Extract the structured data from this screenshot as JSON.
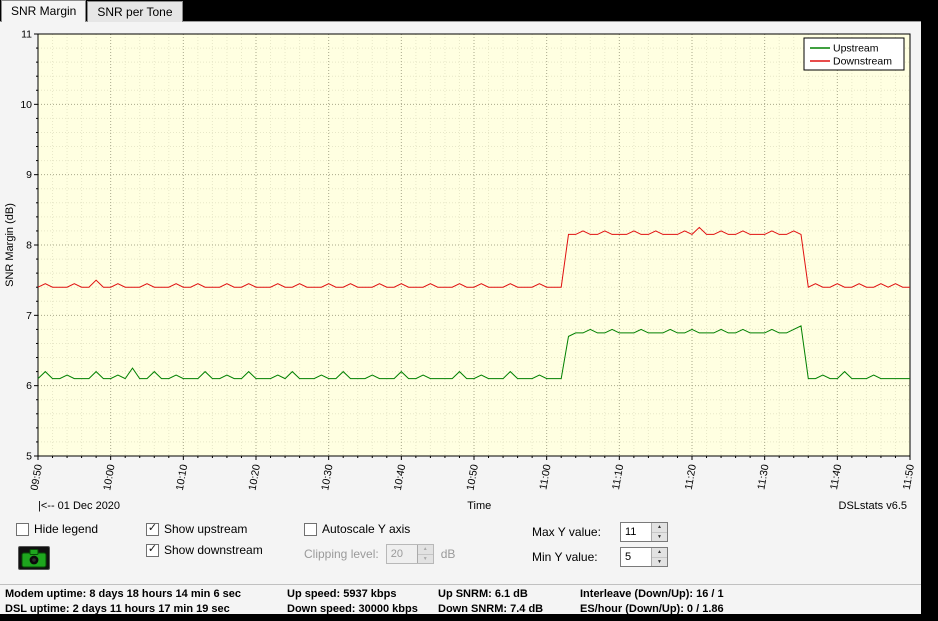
{
  "tabs": [
    {
      "label": "SNR Margin",
      "active": true
    },
    {
      "label": "SNR per Tone",
      "active": false
    }
  ],
  "glyphs": {
    "check": "✓",
    "spin_up": "▲",
    "spin_down": "▼"
  },
  "chart_data": {
    "type": "line",
    "title": "",
    "xlabel": "Time",
    "ylabel": "SNR Margin (dB)",
    "ylim": [
      5,
      11
    ],
    "background": "#ffffe1",
    "grid": true,
    "legend_position": "top-right",
    "date_label": "|<-- 01 Dec 2020",
    "version_label": "DSLstats v6.5",
    "x_start_min": 590,
    "x_end_min": 710,
    "x_step_min": 1,
    "x_tick_labels": [
      "09:50",
      "10:00",
      "10:10",
      "10:20",
      "10:30",
      "10:40",
      "10:50",
      "11:00",
      "11:10",
      "11:20",
      "11:30",
      "11:40",
      "11:50"
    ],
    "y_tick_values": [
      5,
      6,
      7,
      8,
      9,
      10,
      11
    ],
    "series": [
      {
        "name": "Upstream",
        "color": "#008000",
        "values": [
          6.1,
          6.2,
          6.1,
          6.1,
          6.15,
          6.1,
          6.1,
          6.1,
          6.2,
          6.1,
          6.1,
          6.15,
          6.1,
          6.25,
          6.1,
          6.1,
          6.2,
          6.1,
          6.1,
          6.15,
          6.1,
          6.1,
          6.1,
          6.2,
          6.1,
          6.1,
          6.15,
          6.1,
          6.1,
          6.2,
          6.1,
          6.1,
          6.1,
          6.15,
          6.1,
          6.2,
          6.1,
          6.1,
          6.1,
          6.15,
          6.1,
          6.1,
          6.2,
          6.1,
          6.1,
          6.1,
          6.15,
          6.1,
          6.1,
          6.1,
          6.2,
          6.1,
          6.1,
          6.15,
          6.1,
          6.1,
          6.1,
          6.1,
          6.2,
          6.1,
          6.1,
          6.15,
          6.1,
          6.1,
          6.1,
          6.2,
          6.1,
          6.1,
          6.1,
          6.15,
          6.1,
          6.1,
          6.1,
          6.7,
          6.75,
          6.75,
          6.8,
          6.75,
          6.75,
          6.8,
          6.75,
          6.75,
          6.75,
          6.8,
          6.75,
          6.75,
          6.75,
          6.8,
          6.75,
          6.75,
          6.8,
          6.75,
          6.75,
          6.75,
          6.8,
          6.75,
          6.75,
          6.8,
          6.75,
          6.75,
          6.75,
          6.8,
          6.75,
          6.75,
          6.8,
          6.85,
          6.1,
          6.1,
          6.15,
          6.1,
          6.1,
          6.2,
          6.1,
          6.1,
          6.1,
          6.15,
          6.1,
          6.1,
          6.1,
          6.1,
          6.1
        ]
      },
      {
        "name": "Downstream",
        "color": "#e01010",
        "values": [
          7.4,
          7.45,
          7.4,
          7.4,
          7.4,
          7.45,
          7.4,
          7.4,
          7.5,
          7.4,
          7.4,
          7.45,
          7.4,
          7.4,
          7.4,
          7.45,
          7.4,
          7.4,
          7.4,
          7.45,
          7.4,
          7.4,
          7.45,
          7.4,
          7.4,
          7.4,
          7.45,
          7.4,
          7.4,
          7.45,
          7.4,
          7.4,
          7.4,
          7.45,
          7.4,
          7.4,
          7.45,
          7.4,
          7.4,
          7.4,
          7.45,
          7.4,
          7.4,
          7.45,
          7.4,
          7.4,
          7.4,
          7.45,
          7.4,
          7.4,
          7.45,
          7.4,
          7.4,
          7.4,
          7.45,
          7.4,
          7.4,
          7.4,
          7.45,
          7.4,
          7.4,
          7.45,
          7.4,
          7.4,
          7.4,
          7.45,
          7.4,
          7.4,
          7.4,
          7.45,
          7.4,
          7.4,
          7.4,
          8.15,
          8.15,
          8.2,
          8.15,
          8.15,
          8.2,
          8.15,
          8.15,
          8.15,
          8.2,
          8.15,
          8.15,
          8.2,
          8.15,
          8.15,
          8.15,
          8.2,
          8.15,
          8.25,
          8.15,
          8.15,
          8.2,
          8.15,
          8.15,
          8.2,
          8.15,
          8.15,
          8.15,
          8.2,
          8.15,
          8.15,
          8.2,
          8.15,
          7.4,
          7.45,
          7.4,
          7.4,
          7.45,
          7.4,
          7.4,
          7.45,
          7.4,
          7.4,
          7.45,
          7.4,
          7.45,
          7.4,
          7.4
        ]
      }
    ]
  },
  "controls": {
    "hide_legend": {
      "label": "Hide legend",
      "checked": false
    },
    "show_upstream": {
      "label": "Show upstream",
      "checked": true
    },
    "show_downstream": {
      "label": "Show downstream",
      "checked": true
    },
    "autoscale": {
      "label": "Autoscale Y axis",
      "checked": false
    },
    "clipping": {
      "label": "Clipping level:",
      "value": "20",
      "unit": "dB",
      "enabled": false
    },
    "max_y": {
      "label": "Max Y value:",
      "value": "11"
    },
    "min_y": {
      "label": "Min Y value:",
      "value": "5"
    }
  },
  "statusbar": {
    "rows": [
      [
        "Modem uptime: 8 days 18 hours 14 min 6 sec",
        "Up speed: 5937 kbps",
        "Up SNRM: 6.1 dB",
        "Interleave (Down/Up): 16 / 1"
      ],
      [
        "DSL uptime: 2 days 11 hours 17 min 19 sec",
        "Down speed: 30000 kbps",
        "Down SNRM: 7.4 dB",
        "ES/hour (Down/Up): 0 / 1.86"
      ]
    ]
  }
}
